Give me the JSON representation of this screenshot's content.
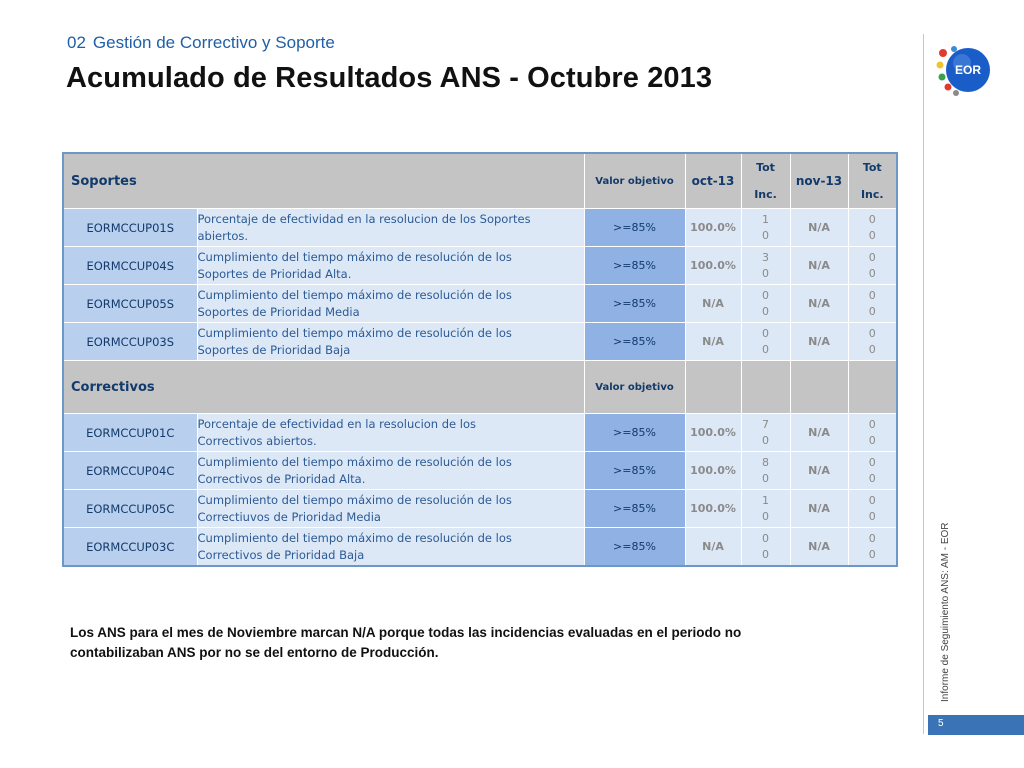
{
  "header": {
    "section_number": "02",
    "section_title": "Gestión de Correctivo y Soporte",
    "title": "Acumulado de Resultados ANS - Octubre 2013"
  },
  "logo": {
    "text": "EOR"
  },
  "side_text": "Informe de Seguimiento ANS: AM - EOR",
  "page_number": "5",
  "colors": {
    "accent": "#1f5fa8",
    "header_gray": "#c4c4c4",
    "code_blue": "#b9cfee",
    "target_blue": "#8fb1e4",
    "row_light": "#dde8f7"
  },
  "table": {
    "soportes_header": {
      "title": "Soportes",
      "valor_objetivo": "Valor objetivo",
      "oct": "oct-13",
      "tot1_a": "Tot",
      "tot1_b": "Inc.",
      "nov": "nov-13",
      "tot2_a": "Tot",
      "tot2_b": "Inc."
    },
    "soportes_rows": [
      {
        "code": "EORMCCUP01S",
        "desc1": "Porcentaje de efectividad en la resolucion de los Soportes",
        "desc2": "abiertos.",
        "target": ">=85%",
        "oct": "100.0%",
        "tot1_a": "1",
        "tot1_b": "0",
        "nov": "N/A",
        "tot2_a": "0",
        "tot2_b": "0"
      },
      {
        "code": "EORMCCUP04S",
        "desc1": "Cumplimiento del tiempo máximo de resolución de los",
        "desc2": "Soportes de Prioridad  Alta.",
        "target": ">=85%",
        "oct": "100.0%",
        "tot1_a": "3",
        "tot1_b": "0",
        "nov": "N/A",
        "tot2_a": "0",
        "tot2_b": "0"
      },
      {
        "code": "EORMCCUP05S",
        "desc1": "Cumplimiento del tiempo máximo de resolución de los",
        "desc2": "Soportes de Prioridad  Media",
        "target": ">=85%",
        "oct": "N/A",
        "tot1_a": "0",
        "tot1_b": "0",
        "nov": "N/A",
        "tot2_a": "0",
        "tot2_b": "0"
      },
      {
        "code": "EORMCCUP03S",
        "desc1": "Cumplimiento del tiempo máximo de resolución de los",
        "desc2": "Soportes de Prioridad  Baja",
        "target": ">=85%",
        "oct": "N/A",
        "tot1_a": "0",
        "tot1_b": "0",
        "nov": "N/A",
        "tot2_a": "0",
        "tot2_b": "0"
      }
    ],
    "correctivos_header": {
      "title": "Correctivos",
      "valor_objetivo": "Valor objetivo"
    },
    "correctivos_rows": [
      {
        "code": "EORMCCUP01C",
        "desc1": "Porcentaje de efectividad en la resolucion de los",
        "desc2": "Correctivos abiertos.",
        "target": ">=85%",
        "oct": "100.0%",
        "tot1_a": "7",
        "tot1_b": "0",
        "nov": "N/A",
        "tot2_a": "0",
        "tot2_b": "0"
      },
      {
        "code": "EORMCCUP04C",
        "desc1": "Cumplimiento del tiempo máximo de resolución de los",
        "desc2": "Correctivos de Prioridad  Alta.",
        "target": ">=85%",
        "oct": "100.0%",
        "tot1_a": "8",
        "tot1_b": "0",
        "nov": "N/A",
        "tot2_a": "0",
        "tot2_b": "0"
      },
      {
        "code": "EORMCCUP05C",
        "desc1": "Cumplimiento del tiempo máximo de resolución de los",
        "desc2": "Correctiuvos de Prioridad  Media",
        "target": ">=85%",
        "oct": "100.0%",
        "tot1_a": "1",
        "tot1_b": "0",
        "nov": "N/A",
        "tot2_a": "0",
        "tot2_b": "0"
      },
      {
        "code": "EORMCCUP03C",
        "desc1": "Cumplimiento del tiempo máximo de resolución de los",
        "desc2": "Correctivos de Prioridad  Baja",
        "target": ">=85%",
        "oct": "N/A",
        "tot1_a": "0",
        "tot1_b": "0",
        "nov": "N/A",
        "tot2_a": "0",
        "tot2_b": "0"
      }
    ]
  },
  "note": {
    "line1": "Los ANS para el mes de Noviembre marcan N/A porque todas las incidencias evaluadas en el periodo no",
    "line2": "contabilizaban ANS por no se del entorno de Producción."
  }
}
